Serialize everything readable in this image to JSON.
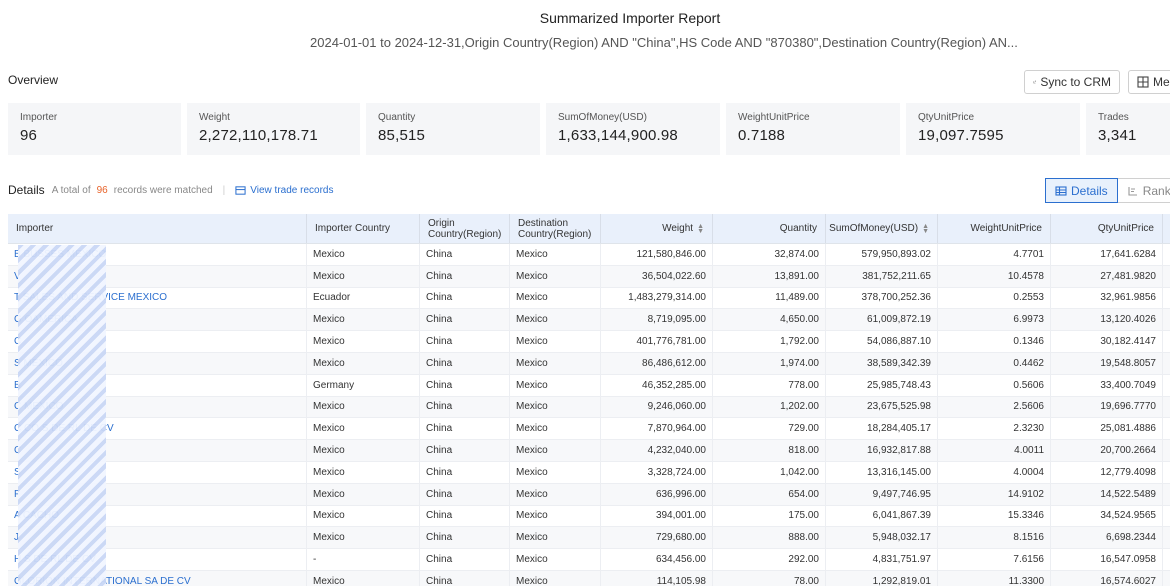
{
  "header": {
    "title": "Summarized Importer Report",
    "subtitle": "2024-01-01 to 2024-12-31,Origin Country(Region) AND \"China\",HS Code AND \"870380\",Destination Country(Region) AN..."
  },
  "overview": {
    "label": "Overview",
    "sync_button": "Sync to CRM",
    "menu_button": "Men",
    "stats": [
      {
        "label": "Importer",
        "value": "96"
      },
      {
        "label": "Weight",
        "value": "2,272,110,178.71"
      },
      {
        "label": "Quantity",
        "value": "85,515"
      },
      {
        "label": "SumOfMoney(USD)",
        "value": "1,633,144,900.98"
      },
      {
        "label": "WeightUnitPrice",
        "value": "0.7188"
      },
      {
        "label": "QtyUnitPrice",
        "value": "19,097.7595"
      },
      {
        "label": "Trades",
        "value": "3,341"
      }
    ]
  },
  "details": {
    "label": "Details",
    "total_prefix": "A total of",
    "total_count": "96",
    "total_suffix": "records were matched",
    "view_link": "View trade records",
    "tab_details": "Details",
    "tab_rank": "Rank"
  },
  "table": {
    "headers": {
      "importer": "Importer",
      "importer_country": "Importer Country",
      "origin_1": "Origin",
      "origin_2": "Country(Region)",
      "dest_1": "Destination",
      "dest_2": "Country(Region)",
      "weight": "Weight",
      "quantity": "Quantity",
      "sum": "SumOfMoney(USD)",
      "wup": "WeightUnitPrice",
      "qup": "QtyUnitPrice"
    },
    "rows": [
      {
        "importer": "B                    BUSSES MEXICO",
        "country": "Mexico",
        "origin": "China",
        "dest": "Mexico",
        "weight": "121,580,846.00",
        "qty": "32,874.00",
        "sum": "579,950,893.02",
        "wup": "4.7701",
        "qup": "17,641.6284"
      },
      {
        "importer": "V",
        "country": "Mexico",
        "origin": "China",
        "dest": "Mexico",
        "weight": "36,504,022.60",
        "qty": "13,891.00",
        "sum": "381,752,211.65",
        "wup": "10.4578",
        "qup": "27,481.9820"
      },
      {
        "importer": "T                    SALES AND SERVICE MEXICO",
        "country": "Ecuador",
        "origin": "China",
        "dest": "Mexico",
        "weight": "1,483,279,314.00",
        "qty": "11,489.00",
        "sum": "378,700,252.36",
        "wup": "0.2553",
        "qup": "32,961.9856"
      },
      {
        "importer": "G                    OAMERICA",
        "country": "Mexico",
        "origin": "China",
        "dest": "Mexico",
        "weight": "8,719,095.00",
        "qty": "4,650.00",
        "sum": "61,009,872.19",
        "wup": "6.9973",
        "qup": "13,120.4026"
      },
      {
        "importer": "C",
        "country": "Mexico",
        "origin": "China",
        "dest": "Mexico",
        "weight": "401,776,781.00",
        "qty": "1,792.00",
        "sum": "54,086,887.10",
        "wup": "0.1346",
        "qup": "30,182.4147"
      },
      {
        "importer": "S                    MEXICO",
        "country": "Mexico",
        "origin": "China",
        "dest": "Mexico",
        "weight": "86,486,612.00",
        "qty": "1,974.00",
        "sum": "38,589,342.39",
        "wup": "0.4462",
        "qup": "19,548.8057"
      },
      {
        "importer": "B",
        "country": "Germany",
        "origin": "China",
        "dest": "Mexico",
        "weight": "46,352,285.00",
        "qty": "778.00",
        "sum": "25,985,748.43",
        "wup": "0.5606",
        "qup": "33,400.7049"
      },
      {
        "importer": "C                    MEXICO",
        "country": "Mexico",
        "origin": "China",
        "dest": "Mexico",
        "weight": "9,246,060.00",
        "qty": "1,202.00",
        "sum": "23,675,525.98",
        "wup": "2.5606",
        "qup": "19,696.7770"
      },
      {
        "importer": "C                    CO S DE RL DE CV",
        "country": "Mexico",
        "origin": "China",
        "dest": "Mexico",
        "weight": "7,870,964.00",
        "qty": "729.00",
        "sum": "18,284,405.17",
        "wup": "2.3230",
        "qup": "25,081.4886"
      },
      {
        "importer": "C",
        "country": "Mexico",
        "origin": "China",
        "dest": "Mexico",
        "weight": "4,232,040.00",
        "qty": "818.00",
        "sum": "16,932,817.88",
        "wup": "4.0011",
        "qup": "20,700.2664"
      },
      {
        "importer": "S",
        "country": "Mexico",
        "origin": "China",
        "dest": "Mexico",
        "weight": "3,328,724.00",
        "qty": "1,042.00",
        "sum": "13,316,145.00",
        "wup": "4.0004",
        "qup": "12,779.4098"
      },
      {
        "importer": "F",
        "country": "Mexico",
        "origin": "China",
        "dest": "Mexico",
        "weight": "636,996.00",
        "qty": "654.00",
        "sum": "9,497,746.95",
        "wup": "14.9102",
        "qup": "14,522.5489"
      },
      {
        "importer": "A                    CACHO",
        "country": "Mexico",
        "origin": "China",
        "dest": "Mexico",
        "weight": "394,001.00",
        "qty": "175.00",
        "sum": "6,041,867.39",
        "wup": "15.3346",
        "qup": "34,524.9565"
      },
      {
        "importer": "J",
        "country": "Mexico",
        "origin": "China",
        "dest": "Mexico",
        "weight": "729,680.00",
        "qty": "888.00",
        "sum": "5,948,032.17",
        "wup": "8.1516",
        "qup": "6,698.2344"
      },
      {
        "importer": "H                    S DE RL DE CV",
        "country": "-",
        "origin": "China",
        "dest": "Mexico",
        "weight": "634,456.00",
        "qty": "292.00",
        "sum": "4,831,751.97",
        "wup": "7.6156",
        "qup": "16,547.0958"
      },
      {
        "importer": "GLORION INTERNATIONAL SA DE CV",
        "country": "Mexico",
        "origin": "China",
        "dest": "Mexico",
        "weight": "114,105.98",
        "qty": "78.00",
        "sum": "1,292,819.01",
        "wup": "11.3300",
        "qup": "16,574.6027"
      }
    ]
  },
  "colors": {
    "accent": "#2b6fcf",
    "count": "#e8632a",
    "header_bg": "#e9f0fb",
    "stat_bg": "#f5f6f8"
  }
}
